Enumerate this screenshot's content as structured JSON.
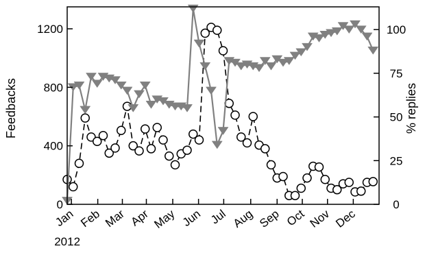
{
  "chart_data": {
    "type": "line",
    "xlim": [
      0,
      52
    ],
    "left_axis": {
      "label": "Feedbacks",
      "ylim": [
        0,
        1350
      ],
      "ticks": [
        0,
        400,
        800,
        1200
      ]
    },
    "right_axis": {
      "label": "% replies",
      "ylim": [
        0,
        113
      ],
      "ticks": [
        0,
        25,
        50,
        75,
        100
      ]
    },
    "x_tick_labels": [
      {
        "x": 0.7,
        "label": "Jan"
      },
      {
        "x": 5.1,
        "label": "Feb"
      },
      {
        "x": 9.2,
        "label": "Mar"
      },
      {
        "x": 13.2,
        "label": "Apr"
      },
      {
        "x": 17.6,
        "label": "May"
      },
      {
        "x": 21.9,
        "label": "Jun"
      },
      {
        "x": 26.1,
        "label": "Jul"
      },
      {
        "x": 30.6,
        "label": "Aug"
      },
      {
        "x": 35.0,
        "label": "Sep"
      },
      {
        "x": 39.2,
        "label": "Oct"
      },
      {
        "x": 43.4,
        "label": "Nov"
      },
      {
        "x": 47.7,
        "label": "Dec"
      }
    ],
    "x_sub_label": {
      "x": 0.7,
      "label": "2012"
    },
    "grid": false,
    "series": [
      {
        "axis": "left",
        "style": "dashed",
        "color": "#000000",
        "marker": "open-circle",
        "x": [
          0,
          1,
          2,
          3,
          4,
          5,
          6,
          7,
          8,
          9,
          10,
          11,
          12,
          13,
          14,
          15,
          16,
          17,
          18,
          19,
          20,
          21,
          22,
          23,
          24,
          25,
          26,
          27,
          28,
          29,
          30,
          31,
          32,
          33,
          34,
          35,
          36,
          37,
          38,
          39,
          40,
          41,
          42,
          43,
          44,
          45,
          46,
          47,
          48,
          49,
          50,
          51
        ],
        "values": [
          170,
          120,
          280,
          590,
          460,
          430,
          470,
          350,
          385,
          505,
          670,
          400,
          365,
          515,
          380,
          525,
          440,
          330,
          270,
          345,
          370,
          480,
          440,
          1170,
          1210,
          1190,
          1050,
          690,
          610,
          460,
          420,
          600,
          405,
          380,
          270,
          180,
          190,
          60,
          60,
          110,
          180,
          260,
          255,
          170,
          110,
          100,
          140,
          150,
          85,
          90,
          150,
          155
        ]
      },
      {
        "axis": "right",
        "style": "solid",
        "color": "#808080",
        "marker": "triangle-down",
        "x": [
          0,
          1,
          2,
          3,
          4,
          5,
          6,
          7,
          8,
          9,
          10,
          11,
          12,
          13,
          14,
          15,
          16,
          17,
          18,
          19,
          20,
          21,
          22,
          23,
          24,
          25,
          26,
          27,
          28,
          29,
          30,
          31,
          32,
          33,
          34,
          35,
          36,
          37,
          38,
          39,
          40,
          41,
          42,
          43,
          44,
          45,
          46,
          47,
          48,
          49,
          50,
          51
        ],
        "values": [
          2,
          67,
          68,
          54,
          73,
          69,
          73,
          72,
          71,
          68,
          65,
          55,
          63,
          68,
          57,
          60,
          59,
          57,
          56,
          56,
          55,
          112,
          92,
          79,
          65,
          34,
          42,
          82,
          81,
          79,
          80,
          79,
          78,
          82,
          79,
          83,
          81,
          82,
          85,
          87,
          90,
          96,
          95,
          97,
          98,
          99,
          102,
          100,
          103,
          100,
          96,
          88
        ]
      }
    ]
  }
}
